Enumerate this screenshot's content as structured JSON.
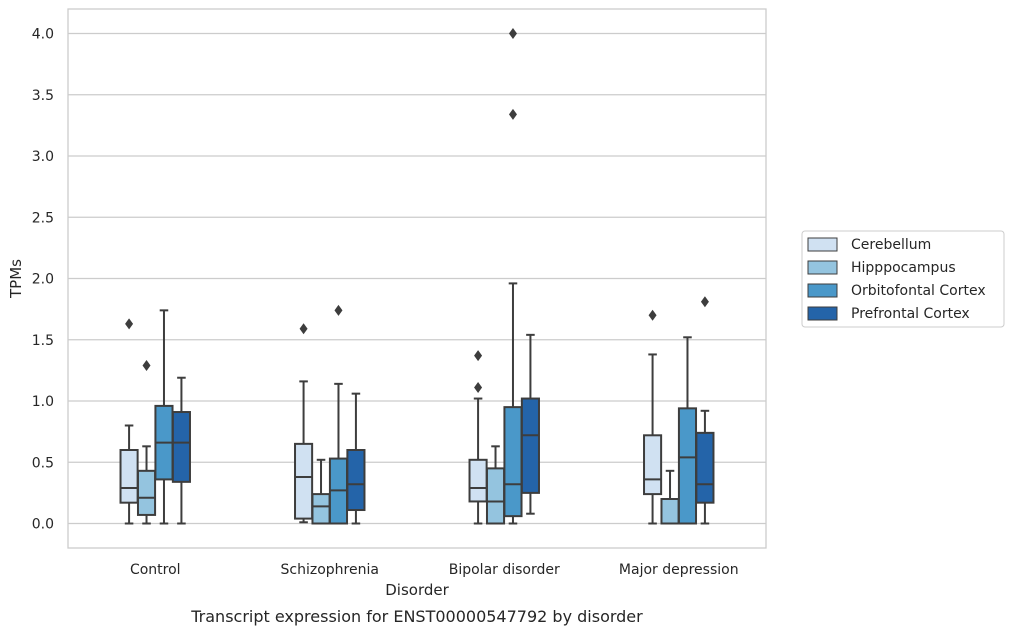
{
  "caption": "Transcript expression for ENST00000547792 by disorder",
  "chart_data": {
    "type": "box",
    "xlabel": "Disorder",
    "ylabel": "TPMs",
    "ylim": [
      -0.2,
      4.2
    ],
    "yticks": [
      0.0,
      0.5,
      1.0,
      1.5,
      2.0,
      2.5,
      3.0,
      3.5,
      4.0
    ],
    "ytick_labels": [
      "0.0",
      "0.5",
      "1.0",
      "1.5",
      "2.0",
      "2.5",
      "3.0",
      "3.5",
      "4.0"
    ],
    "grid": "horizontal",
    "legend_position": "right",
    "categories": [
      "Control",
      "Schizophrenia",
      "Bipolar disorder",
      "Major depression"
    ],
    "series": [
      {
        "name": "Cerebellum",
        "color": "#d0e1f2",
        "boxes": [
          {
            "whislo": 0.0,
            "q1": 0.17,
            "med": 0.29,
            "q3": 0.6,
            "whishi": 0.8,
            "fliers": [
              1.63
            ]
          },
          {
            "whislo": 0.01,
            "q1": 0.04,
            "med": 0.38,
            "q3": 0.65,
            "whishi": 1.16,
            "fliers": [
              1.59
            ]
          },
          {
            "whislo": 0.0,
            "q1": 0.18,
            "med": 0.29,
            "q3": 0.52,
            "whishi": 1.02,
            "fliers": [
              1.11,
              1.37
            ]
          },
          {
            "whislo": 0.0,
            "q1": 0.24,
            "med": 0.36,
            "q3": 0.72,
            "whishi": 1.38,
            "fliers": [
              1.7
            ]
          }
        ]
      },
      {
        "name": "Hipppocampus",
        "color": "#94c4df",
        "boxes": [
          {
            "whislo": 0.0,
            "q1": 0.07,
            "med": 0.21,
            "q3": 0.43,
            "whishi": 0.63,
            "fliers": [
              1.29
            ]
          },
          {
            "whislo": 0.0,
            "q1": 0.0,
            "med": 0.14,
            "q3": 0.24,
            "whishi": 0.52,
            "fliers": []
          },
          {
            "whislo": 0.0,
            "q1": 0.0,
            "med": 0.18,
            "q3": 0.45,
            "whishi": 0.63,
            "fliers": []
          },
          {
            "whislo": 0.0,
            "q1": 0.0,
            "med": 0.0,
            "q3": 0.2,
            "whishi": 0.43,
            "fliers": []
          }
        ]
      },
      {
        "name": "Orbitofontal Cortex",
        "color": "#4a98c9",
        "boxes": [
          {
            "whislo": 0.0,
            "q1": 0.36,
            "med": 0.66,
            "q3": 0.96,
            "whishi": 1.74,
            "fliers": []
          },
          {
            "whislo": 0.0,
            "q1": 0.0,
            "med": 0.27,
            "q3": 0.53,
            "whishi": 1.14,
            "fliers": [
              1.74
            ]
          },
          {
            "whislo": 0.0,
            "q1": 0.06,
            "med": 0.32,
            "q3": 0.95,
            "whishi": 1.96,
            "fliers": [
              3.34,
              4.0
            ]
          },
          {
            "whislo": 0.0,
            "q1": 0.0,
            "med": 0.54,
            "q3": 0.94,
            "whishi": 1.52,
            "fliers": []
          }
        ]
      },
      {
        "name": "Prefrontal Cortex",
        "color": "#2464a9",
        "boxes": [
          {
            "whislo": 0.0,
            "q1": 0.34,
            "med": 0.66,
            "q3": 0.91,
            "whishi": 1.19,
            "fliers": []
          },
          {
            "whislo": 0.0,
            "q1": 0.11,
            "med": 0.32,
            "q3": 0.6,
            "whishi": 1.06,
            "fliers": []
          },
          {
            "whislo": 0.08,
            "q1": 0.25,
            "med": 0.72,
            "q3": 1.02,
            "whishi": 1.54,
            "fliers": []
          },
          {
            "whislo": 0.0,
            "q1": 0.17,
            "med": 0.32,
            "q3": 0.74,
            "whishi": 0.92,
            "fliers": [
              1.81
            ]
          }
        ]
      }
    ]
  }
}
